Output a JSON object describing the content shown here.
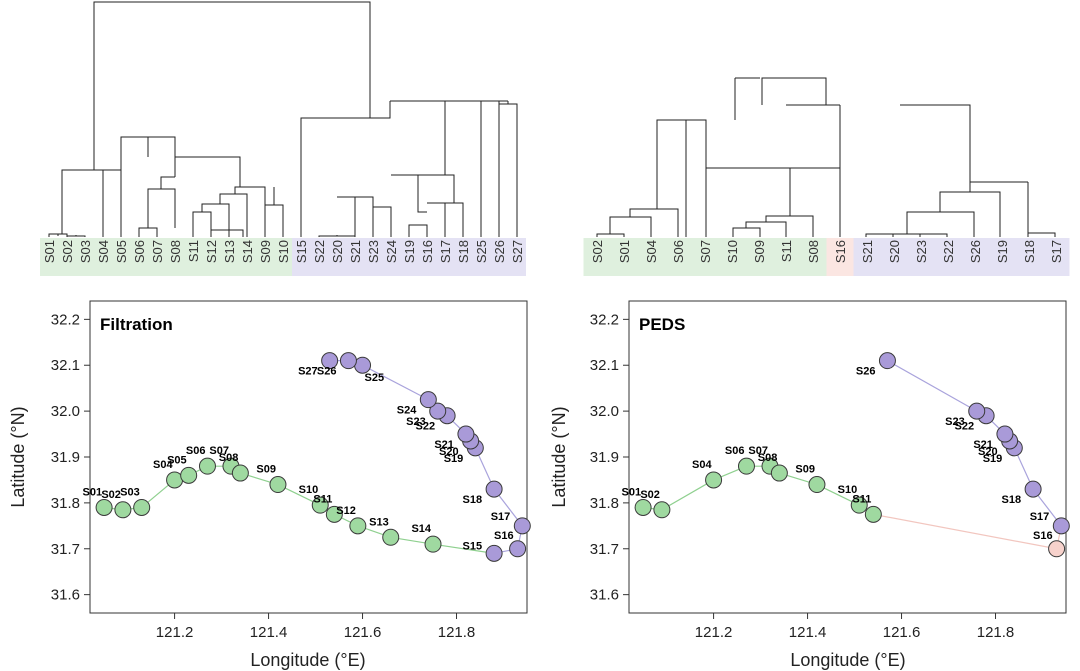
{
  "chart_data": [
    {
      "type": "dendrogram",
      "panel": "top-left",
      "leaves": [
        "S01",
        "S02",
        "S03",
        "S04",
        "S05",
        "S06",
        "S07",
        "S08",
        "S11",
        "S12",
        "S13",
        "S14",
        "S09",
        "S10",
        "S15",
        "S22",
        "S20",
        "S21",
        "S23",
        "S24",
        "S19",
        "S16",
        "S17",
        "S18",
        "S25",
        "S26",
        "S27"
      ],
      "groups": [
        {
          "from": "S01",
          "to": "S10",
          "color": "#dff0de"
        },
        {
          "from": "S15",
          "to": "S27",
          "color": "#e4e2f4"
        }
      ]
    },
    {
      "type": "dendrogram",
      "panel": "top-right",
      "leaves": [
        "S02",
        "S01",
        "S04",
        "S06",
        "S07",
        "S10",
        "S09",
        "S11",
        "S08",
        "S16",
        "S21",
        "S20",
        "S23",
        "S22",
        "S26",
        "S19",
        "S18",
        "S17"
      ],
      "groups": [
        {
          "from": "S02",
          "to": "S08",
          "color": "#dff0de"
        },
        {
          "from": "S16",
          "to": "S16",
          "color": "#fbe6e2"
        },
        {
          "from": "S21",
          "to": "S17",
          "color": "#e4e2f4"
        }
      ]
    },
    {
      "type": "scatter",
      "panel": "bottom-left",
      "title": "Filtration",
      "xlabel": "Longitude (°E)",
      "ylabel": "Latitude (°N)",
      "xlim": [
        121.02,
        121.95
      ],
      "ylim": [
        31.56,
        32.24
      ],
      "xticks": [
        "121.2",
        "121.4",
        "121.6",
        "121.8"
      ],
      "yticks": [
        "31.6",
        "31.7",
        "31.8",
        "31.9",
        "32.0",
        "32.1",
        "32.2"
      ],
      "colors": {
        "green": "#9fd9a0",
        "purple": "#a99ad8",
        "pink": "#f7d2cc",
        "green_line": "#8fd08f",
        "purple_line": "#a9a3dc",
        "pink_line": "#f2c6bf"
      },
      "points": [
        {
          "label": "S01",
          "lon": 121.05,
          "lat": 31.79,
          "color": "green"
        },
        {
          "label": "S02",
          "lon": 121.09,
          "lat": 31.785,
          "color": "green"
        },
        {
          "label": "S03",
          "lon": 121.13,
          "lat": 31.79,
          "color": "green"
        },
        {
          "label": "S04",
          "lon": 121.2,
          "lat": 31.85,
          "color": "green"
        },
        {
          "label": "S05",
          "lon": 121.23,
          "lat": 31.86,
          "color": "green"
        },
        {
          "label": "S06",
          "lon": 121.27,
          "lat": 31.88,
          "color": "green"
        },
        {
          "label": "S07",
          "lon": 121.32,
          "lat": 31.88,
          "color": "green"
        },
        {
          "label": "S08",
          "lon": 121.34,
          "lat": 31.865,
          "color": "green"
        },
        {
          "label": "S09",
          "lon": 121.42,
          "lat": 31.84,
          "color": "green"
        },
        {
          "label": "S10",
          "lon": 121.51,
          "lat": 31.795,
          "color": "green"
        },
        {
          "label": "S11",
          "lon": 121.54,
          "lat": 31.775,
          "color": "green"
        },
        {
          "label": "S12",
          "lon": 121.59,
          "lat": 31.75,
          "color": "green"
        },
        {
          "label": "S13",
          "lon": 121.66,
          "lat": 31.725,
          "color": "green"
        },
        {
          "label": "S14",
          "lon": 121.75,
          "lat": 31.71,
          "color": "green"
        },
        {
          "label": "S15",
          "lon": 121.88,
          "lat": 31.69,
          "color": "purple"
        },
        {
          "label": "S16",
          "lon": 121.93,
          "lat": 31.7,
          "color": "purple"
        },
        {
          "label": "S17",
          "lon": 121.94,
          "lat": 31.75,
          "color": "purple"
        },
        {
          "label": "S18",
          "lon": 121.88,
          "lat": 31.83,
          "color": "purple"
        },
        {
          "label": "S19",
          "lon": 121.84,
          "lat": 31.92,
          "color": "purple"
        },
        {
          "label": "S20",
          "lon": 121.83,
          "lat": 31.935,
          "color": "purple"
        },
        {
          "label": "S21",
          "lon": 121.82,
          "lat": 31.95,
          "color": "purple"
        },
        {
          "label": "S22",
          "lon": 121.78,
          "lat": 31.99,
          "color": "purple"
        },
        {
          "label": "S23",
          "lon": 121.76,
          "lat": 32.0,
          "color": "purple"
        },
        {
          "label": "S24",
          "lon": 121.74,
          "lat": 32.025,
          "color": "purple"
        },
        {
          "label": "S25",
          "lon": 121.6,
          "lat": 32.1,
          "color": "purple"
        },
        {
          "label": "S26",
          "lon": 121.57,
          "lat": 32.11,
          "color": "purple"
        },
        {
          "label": "S27",
          "lon": 121.53,
          "lat": 32.11,
          "color": "purple"
        }
      ]
    },
    {
      "type": "scatter",
      "panel": "bottom-right",
      "title": "PEDS",
      "xlabel": "Longitude (°E)",
      "ylabel": "Latitude (°N)",
      "xlim": [
        121.02,
        121.95
      ],
      "ylim": [
        31.56,
        32.24
      ],
      "xticks": [
        "121.2",
        "121.4",
        "121.6",
        "121.8"
      ],
      "yticks": [
        "31.6",
        "31.7",
        "31.8",
        "31.9",
        "32.0",
        "32.1",
        "32.2"
      ],
      "colors": {
        "green": "#9fd9a0",
        "purple": "#a99ad8",
        "pink": "#f7d2cc",
        "green_line": "#8fd08f",
        "purple_line": "#a9a3dc",
        "pink_line": "#f2c6bf"
      },
      "points": [
        {
          "label": "S01",
          "lon": 121.05,
          "lat": 31.79,
          "color": "green"
        },
        {
          "label": "S02",
          "lon": 121.09,
          "lat": 31.785,
          "color": "green"
        },
        {
          "label": "S04",
          "lon": 121.2,
          "lat": 31.85,
          "color": "green"
        },
        {
          "label": "S06",
          "lon": 121.27,
          "lat": 31.88,
          "color": "green"
        },
        {
          "label": "S07",
          "lon": 121.32,
          "lat": 31.88,
          "color": "green"
        },
        {
          "label": "S08",
          "lon": 121.34,
          "lat": 31.865,
          "color": "green"
        },
        {
          "label": "S09",
          "lon": 121.42,
          "lat": 31.84,
          "color": "green"
        },
        {
          "label": "S10",
          "lon": 121.51,
          "lat": 31.795,
          "color": "green"
        },
        {
          "label": "S11",
          "lon": 121.54,
          "lat": 31.775,
          "color": "green"
        },
        {
          "label": "S16",
          "lon": 121.93,
          "lat": 31.7,
          "color": "pink"
        },
        {
          "label": "S17",
          "lon": 121.94,
          "lat": 31.75,
          "color": "purple"
        },
        {
          "label": "S18",
          "lon": 121.88,
          "lat": 31.83,
          "color": "purple"
        },
        {
          "label": "S19",
          "lon": 121.84,
          "lat": 31.92,
          "color": "purple"
        },
        {
          "label": "S20",
          "lon": 121.83,
          "lat": 31.935,
          "color": "purple"
        },
        {
          "label": "S21",
          "lon": 121.82,
          "lat": 31.95,
          "color": "purple"
        },
        {
          "label": "S22",
          "lon": 121.78,
          "lat": 31.99,
          "color": "purple"
        },
        {
          "label": "S23",
          "lon": 121.76,
          "lat": 32.0,
          "color": "purple"
        },
        {
          "label": "S26",
          "lon": 121.57,
          "lat": 32.11,
          "color": "purple"
        }
      ]
    }
  ]
}
